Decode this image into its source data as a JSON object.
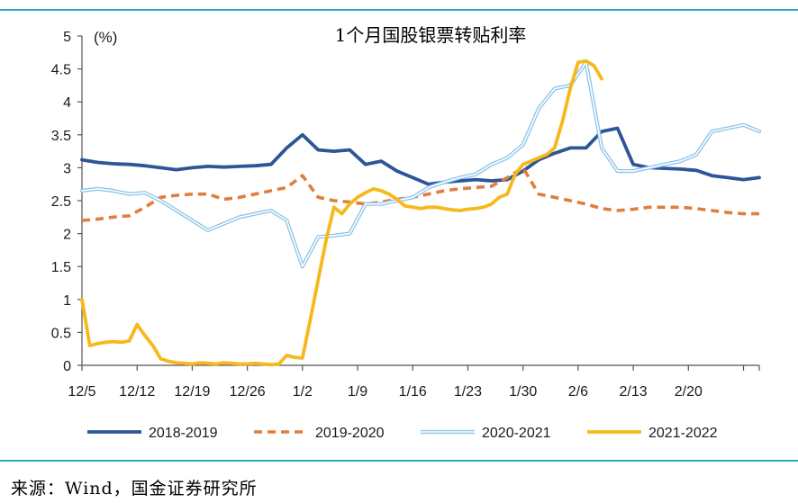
{
  "chart_data": {
    "type": "line",
    "title": "1个月国股银票转贴利率",
    "ylabel": "(%)",
    "xlabel": "",
    "ylim": [
      0,
      5
    ],
    "yticks": [
      "0",
      "0.5",
      "1",
      "1.5",
      "2",
      "2.5",
      "3",
      "3.5",
      "4",
      "4.5",
      "5"
    ],
    "x_tick_labels": [
      "12/5",
      "12/12",
      "12/19",
      "12/26",
      "1/2",
      "1/9",
      "1/16",
      "1/23",
      "1/30",
      "2/6",
      "2/13",
      "2/20"
    ],
    "x_unit": "days from 12/5",
    "xlim": [
      0,
      86
    ],
    "grid": false,
    "legend_position": "bottom",
    "series": [
      {
        "name": "2018-2019",
        "color": "#2e5597",
        "style": "solid",
        "x": [
          0,
          2,
          4,
          6,
          8,
          10,
          12,
          14,
          16,
          18,
          20,
          22,
          24,
          26,
          28,
          30,
          32,
          34,
          36,
          38,
          40,
          42,
          44,
          46,
          48,
          50,
          52,
          54,
          56,
          58,
          60,
          62,
          64,
          66,
          68,
          70,
          72,
          74,
          76,
          78,
          80,
          82,
          84,
          86
        ],
        "values": [
          3.12,
          3.08,
          3.06,
          3.05,
          3.03,
          3.0,
          2.97,
          3.0,
          3.02,
          3.01,
          3.02,
          3.03,
          3.05,
          3.3,
          3.5,
          3.27,
          3.25,
          3.27,
          3.05,
          3.1,
          2.95,
          2.85,
          2.75,
          2.78,
          2.8,
          2.82,
          2.8,
          2.82,
          2.95,
          3.12,
          3.22,
          3.3,
          3.3,
          3.55,
          3.6,
          3.05,
          3.0,
          2.99,
          2.98,
          2.96,
          2.88,
          2.85,
          2.82,
          2.85
        ]
      },
      {
        "name": "2019-2020",
        "color": "#e07e3c",
        "style": "dashed",
        "x": [
          0,
          2,
          4,
          6,
          8,
          10,
          12,
          14,
          16,
          18,
          20,
          22,
          24,
          26,
          28,
          30,
          32,
          34,
          36,
          38,
          40,
          42,
          44,
          46,
          48,
          50,
          52,
          54,
          56,
          58,
          60,
          62,
          64,
          66,
          68,
          70,
          72,
          74,
          76,
          78,
          80,
          82,
          84,
          86
        ],
        "values": [
          2.2,
          2.22,
          2.25,
          2.27,
          2.4,
          2.55,
          2.58,
          2.6,
          2.6,
          2.52,
          2.55,
          2.6,
          2.65,
          2.7,
          2.88,
          2.55,
          2.5,
          2.48,
          2.45,
          2.48,
          2.52,
          2.55,
          2.6,
          2.65,
          2.68,
          2.7,
          2.72,
          2.85,
          3.0,
          2.6,
          2.55,
          2.5,
          2.45,
          2.38,
          2.35,
          2.37,
          2.4,
          2.4,
          2.4,
          2.38,
          2.35,
          2.32,
          2.3,
          2.3
        ]
      },
      {
        "name": "2020-2021",
        "color": "#8cc4e8",
        "style": "double",
        "x": [
          0,
          2,
          4,
          6,
          8,
          10,
          12,
          14,
          16,
          18,
          20,
          22,
          24,
          26,
          28,
          30,
          32,
          34,
          36,
          38,
          40,
          42,
          44,
          46,
          48,
          50,
          52,
          54,
          56,
          58,
          60,
          62,
          64,
          66,
          68,
          70,
          72,
          74,
          76,
          78,
          80,
          82,
          84,
          86
        ],
        "values": [
          2.65,
          2.68,
          2.65,
          2.6,
          2.62,
          2.5,
          2.35,
          2.2,
          2.05,
          2.15,
          2.25,
          2.3,
          2.35,
          2.2,
          1.5,
          1.95,
          1.97,
          2.0,
          2.45,
          2.45,
          2.5,
          2.55,
          2.7,
          2.78,
          2.85,
          2.9,
          3.05,
          3.15,
          3.35,
          3.9,
          4.2,
          4.25,
          4.6,
          3.3,
          2.95,
          2.95,
          3.0,
          3.05,
          3.1,
          3.2,
          3.55,
          3.6,
          3.65,
          3.55
        ]
      },
      {
        "name": "2021-2022",
        "color": "#f5b91c",
        "style": "solid",
        "x": [
          0,
          1,
          2,
          3,
          4,
          5,
          6,
          7,
          8,
          9,
          10,
          11,
          12,
          13,
          14,
          15,
          16,
          17,
          18,
          19,
          20,
          21,
          22,
          23,
          24,
          25,
          26,
          27,
          28,
          29,
          30,
          31,
          32,
          33,
          34,
          35,
          36,
          37,
          38,
          39,
          40,
          41,
          42,
          43,
          44,
          45,
          46,
          47,
          48,
          49,
          50,
          51,
          52,
          53,
          54,
          55,
          56,
          57,
          58,
          59,
          60,
          61,
          62,
          63,
          64,
          65,
          66
        ],
        "values": [
          1.0,
          0.3,
          0.33,
          0.35,
          0.36,
          0.35,
          0.37,
          0.62,
          0.45,
          0.3,
          0.1,
          0.06,
          0.04,
          0.03,
          0.02,
          0.04,
          0.03,
          0.02,
          0.04,
          0.03,
          0.02,
          0.02,
          0.03,
          0.02,
          0.01,
          0.02,
          0.15,
          0.12,
          0.11,
          0.7,
          1.3,
          1.9,
          2.4,
          2.3,
          2.45,
          2.55,
          2.62,
          2.68,
          2.65,
          2.6,
          2.52,
          2.42,
          2.4,
          2.38,
          2.4,
          2.4,
          2.38,
          2.36,
          2.35,
          2.37,
          2.38,
          2.4,
          2.45,
          2.55,
          2.6,
          2.9,
          3.05,
          3.1,
          3.15,
          3.2,
          3.3,
          3.7,
          4.2,
          4.6,
          4.62,
          4.55,
          4.35
        ]
      }
    ],
    "x_plot_range": [
      0,
      86
    ]
  },
  "source_text": "来源：Wind，国金证券研究所"
}
